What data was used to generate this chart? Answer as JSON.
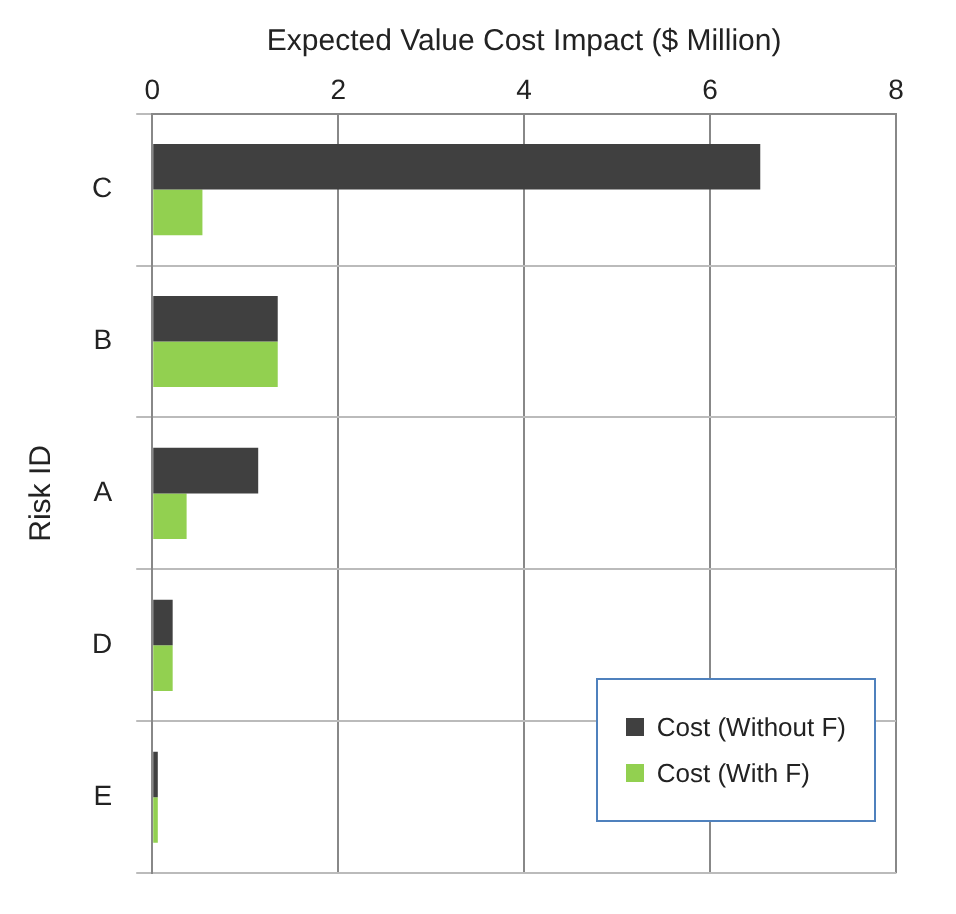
{
  "chart_data": {
    "type": "bar",
    "orientation": "horizontal",
    "xlabel": "Expected Value Cost Impact ($ Million)",
    "ylabel": "Risk ID",
    "categories": [
      "C",
      "B",
      "A",
      "D",
      "E"
    ],
    "series": [
      {
        "name": "Cost (Without F)",
        "color": "#404040",
        "values": [
          6.54,
          1.35,
          1.14,
          0.22,
          0.06
        ]
      },
      {
        "name": "Cost (With F)",
        "color": "#92d050",
        "values": [
          0.54,
          1.35,
          0.37,
          0.22,
          0.06
        ]
      }
    ],
    "xlim": [
      0,
      8
    ],
    "xticks": [
      0,
      2,
      4,
      6,
      8
    ],
    "grid": true,
    "legend": "bottom right"
  }
}
